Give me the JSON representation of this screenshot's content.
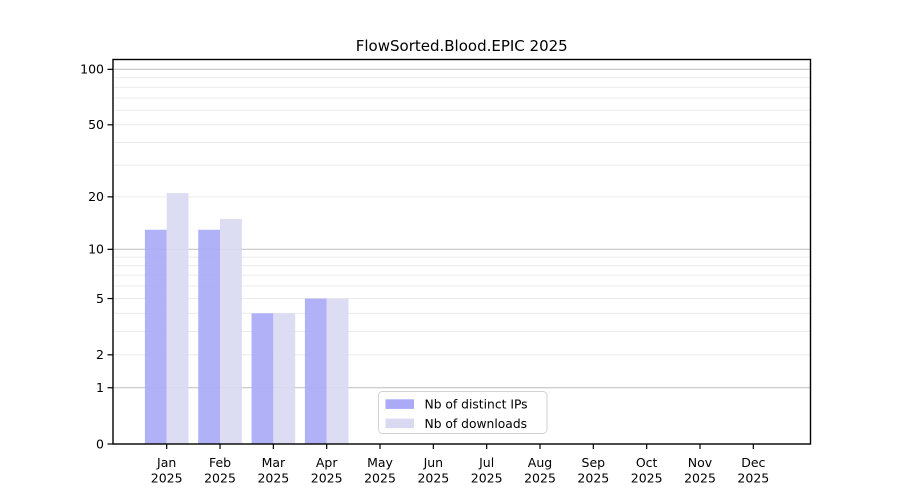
{
  "chart_data": {
    "type": "bar",
    "title": "FlowSorted.Blood.EPIC 2025",
    "x_axis": {
      "months": [
        "Jan",
        "Feb",
        "Mar",
        "Apr",
        "May",
        "Jun",
        "Jul",
        "Aug",
        "Sep",
        "Oct",
        "Nov",
        "Dec"
      ],
      "year": "2025"
    },
    "y_axis": {
      "scale": "log1p",
      "tick_values": [
        0,
        1,
        2,
        5,
        10,
        20,
        50,
        100
      ],
      "tick_labels": [
        "0",
        "1",
        "2",
        "5",
        "10",
        "20",
        "50",
        "100"
      ],
      "major_gridlines": [
        1,
        10,
        100
      ],
      "minor_gridlines": [
        2,
        3,
        4,
        5,
        6,
        7,
        8,
        9,
        20,
        30,
        40,
        50,
        60,
        70,
        80,
        90
      ],
      "ylim": [
        0,
        113
      ]
    },
    "series": [
      {
        "name": "Nb of distinct IPs",
        "color": "#aaaaf7",
        "values": [
          13,
          13,
          4,
          5,
          0,
          0,
          0,
          0,
          0,
          0,
          0,
          0
        ]
      },
      {
        "name": "Nb of downloads",
        "color": "#d9d9f2",
        "values": [
          21,
          15,
          4,
          5,
          0,
          0,
          0,
          0,
          0,
          0,
          0,
          0
        ]
      }
    ],
    "legend": {
      "position": "lower center",
      "entries": [
        "Nb of distinct IPs",
        "Nb of downloads"
      ]
    },
    "grid": true,
    "colors": {
      "background": "#ffffff",
      "axis": "#000000",
      "major_grid": "#c6c6c6",
      "minor_grid": "#ececec",
      "legend_border": "#d2d2d2"
    }
  }
}
